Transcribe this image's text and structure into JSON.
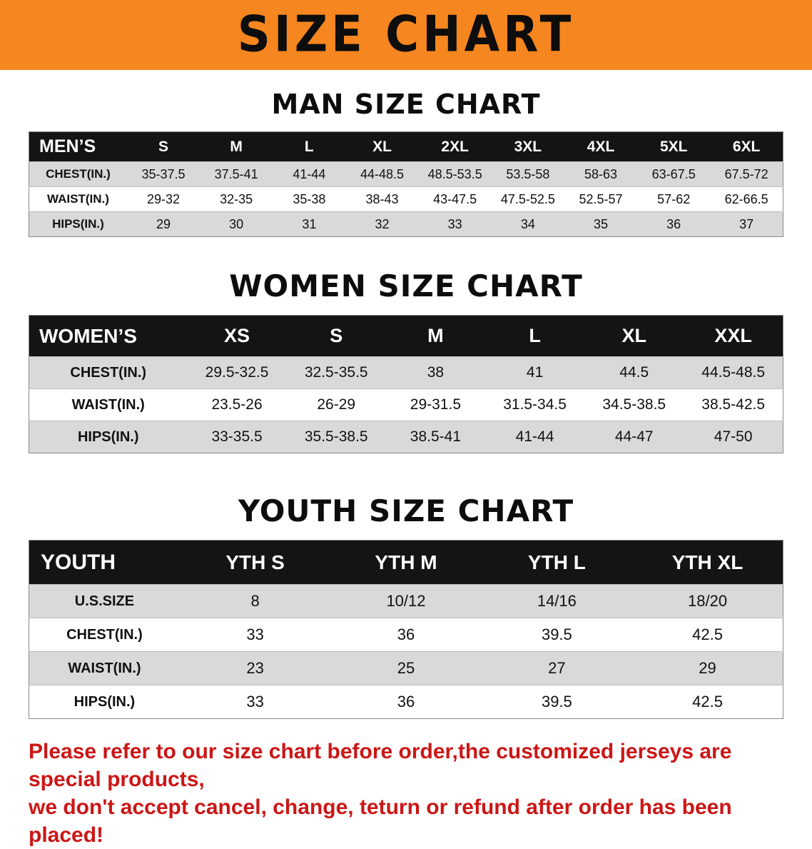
{
  "banner": {
    "title": "SIZE CHART"
  },
  "colors": {
    "banner_bg": "#f6861f",
    "header_bg": "#141414",
    "row_alt": "#d9d9d9",
    "disclaimer_color": "#cc1616"
  },
  "chart_data": [
    {
      "type": "table",
      "title": "MAN SIZE CHART",
      "header": [
        "MEN’S",
        "S",
        "M",
        "L",
        "XL",
        "2XL",
        "3XL",
        "4XL",
        "5XL",
        "6XL"
      ],
      "rows": [
        [
          "CHEST(IN.)",
          "35-37.5",
          "37.5-41",
          "41-44",
          "44-48.5",
          "48.5-53.5",
          "53.5-58",
          "58-63",
          "63-67.5",
          "67.5-72"
        ],
        [
          "WAIST(IN.)",
          "29-32",
          "32-35",
          "35-38",
          "38-43",
          "43-47.5",
          "47.5-52.5",
          "52.5-57",
          "57-62",
          "62-66.5"
        ],
        [
          "HIPS(IN.)",
          "29",
          "30",
          "31",
          "32",
          "33",
          "34",
          "35",
          "36",
          "37"
        ]
      ]
    },
    {
      "type": "table",
      "title": "WOMEN SIZE CHART",
      "header": [
        "WOMEN’S",
        "XS",
        "S",
        "M",
        "L",
        "XL",
        "XXL"
      ],
      "rows": [
        [
          "CHEST(IN.)",
          "29.5-32.5",
          "32.5-35.5",
          "38",
          "41",
          "44.5",
          "44.5-48.5"
        ],
        [
          "WAIST(IN.)",
          "23.5-26",
          "26-29",
          "29-31.5",
          "31.5-34.5",
          "34.5-38.5",
          "38.5-42.5"
        ],
        [
          "HIPS(IN.)",
          "33-35.5",
          "35.5-38.5",
          "38.5-41",
          "41-44",
          "44-47",
          "47-50"
        ]
      ]
    },
    {
      "type": "table",
      "title": "YOUTH SIZE CHART",
      "header": [
        "YOUTH",
        "YTH S",
        "YTH M",
        "YTH L",
        "YTH XL"
      ],
      "rows": [
        [
          "U.S.SIZE",
          "8",
          "10/12",
          "14/16",
          "18/20"
        ],
        [
          "CHEST(IN.)",
          "33",
          "36",
          "39.5",
          "42.5"
        ],
        [
          "WAIST(IN.)",
          "23",
          "25",
          "27",
          "29"
        ],
        [
          "HIPS(IN.)",
          "33",
          "36",
          "39.5",
          "42.5"
        ]
      ]
    }
  ],
  "disclaimer": {
    "line1": "Please refer to our size chart before order,the customized jerseys are special products,",
    "line2": "we don't accept cancel, change, teturn or refund after order has been placed!"
  }
}
